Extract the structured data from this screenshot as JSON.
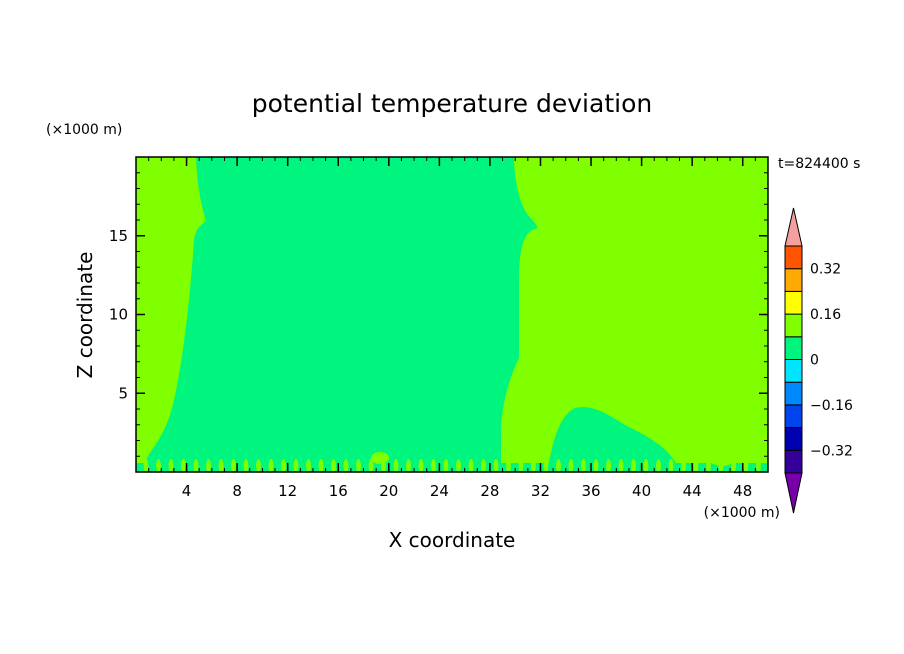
{
  "chart_data": {
    "type": "heatmap",
    "title": "potential temperature deviation",
    "time_label": "t=824400 s",
    "xlabel": "X coordinate",
    "ylabel": "Z coordinate",
    "x_unit": "(×1000 m)",
    "y_unit": "(×1000 m)",
    "xlim": [
      0,
      50
    ],
    "ylim": [
      0,
      20
    ],
    "x_ticks": [
      4,
      8,
      12,
      16,
      20,
      24,
      28,
      32,
      36,
      40,
      44,
      48
    ],
    "y_ticks": [
      5,
      10,
      15
    ],
    "colorbar": {
      "levels": [
        -0.4,
        -0.32,
        -0.24,
        -0.16,
        -0.08,
        0,
        0.08,
        0.16,
        0.24,
        0.32,
        0.4
      ],
      "labels": [
        "-0.32",
        "-0.16",
        "0",
        "0.16",
        "0.32"
      ],
      "label_values": [
        -0.32,
        -0.16,
        0,
        0.16,
        0.32
      ],
      "colors": [
        "#330099",
        "#0000b3",
        "#0044ee",
        "#0088ff",
        "#00e5ff",
        "#00f57f",
        "#7fff00",
        "#ffff00",
        "#ffaa00",
        "#ff5500",
        "#ff2222"
      ],
      "under_color": "#7700aa",
      "over_color": "#f4a0a0"
    },
    "fields": {
      "background_band": "0 to 0.08",
      "background_color": "#7fff00",
      "region_band": "-0.08 to 0",
      "region_color": "#00f57f"
    }
  }
}
